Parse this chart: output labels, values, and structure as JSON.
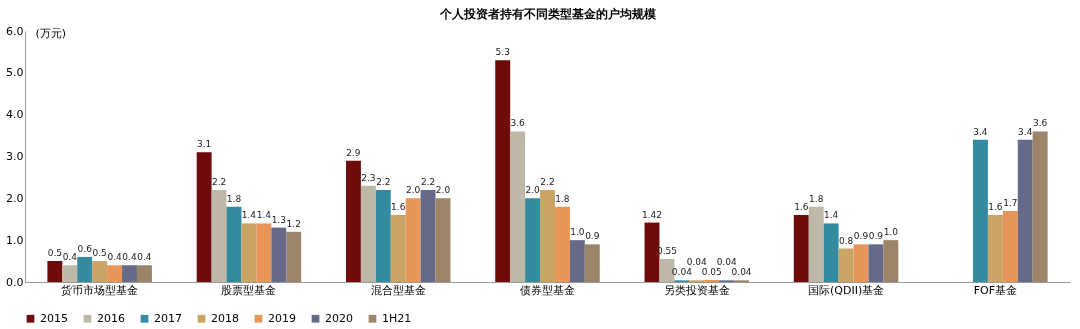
{
  "chart_data": {
    "type": "bar",
    "title": "个人投资者持有不同类型基金的户均规模",
    "ylabel": "(万元)",
    "categories": [
      "货币市场型基金",
      "股票型基金",
      "混合型基金",
      "债券型基金",
      "另类投资基金",
      "国际(QDII)基金",
      "FOF基金"
    ],
    "series": [
      {
        "name": "2015",
        "color": "#6e0b0b",
        "values": [
          0.5,
          3.1,
          2.9,
          5.3,
          1.42,
          1.6,
          null
        ],
        "value_labels": [
          "0.5",
          "3.1",
          "2.9",
          "5.3",
          "1.42",
          "1.6",
          null
        ]
      },
      {
        "name": "2016",
        "color": "#bdb8a8",
        "values": [
          0.4,
          2.2,
          2.3,
          3.6,
          0.55,
          1.8,
          null
        ],
        "value_labels": [
          "0.4",
          "2.2",
          "2.3",
          "3.6",
          "0.55",
          "1.8",
          null
        ]
      },
      {
        "name": "2017",
        "color": "#348a9e",
        "values": [
          0.6,
          1.8,
          2.2,
          2.0,
          0.04,
          1.4,
          3.4
        ],
        "value_labels": [
          "0.6",
          "1.8",
          "2.2",
          "2.0",
          "0.04",
          "1.4",
          "3.4"
        ]
      },
      {
        "name": "2018",
        "color": "#c9a465",
        "values": [
          0.5,
          1.4,
          1.6,
          2.2,
          0.04,
          0.8,
          1.6
        ],
        "value_labels": [
          "0.5",
          "1.4",
          "1.6",
          "2.2",
          "0.04",
          "0.8",
          "1.6"
        ]
      },
      {
        "name": "2019",
        "color": "#e8955a",
        "values": [
          0.4,
          1.4,
          2.0,
          1.8,
          0.05,
          0.9,
          1.7
        ],
        "value_labels": [
          "0.4",
          "1.4",
          "2.0",
          "1.8",
          "0.05",
          "0.9",
          "1.7"
        ]
      },
      {
        "name": "2020",
        "color": "#646a88",
        "values": [
          0.4,
          1.3,
          2.2,
          1.0,
          0.04,
          0.9,
          3.4
        ],
        "value_labels": [
          "0.4",
          "1.3",
          "2.2",
          "1.0",
          "0.04",
          "0.9",
          "3.4"
        ]
      },
      {
        "name": "1H21",
        "color": "#9c8468",
        "values": [
          0.4,
          1.2,
          2.0,
          0.9,
          0.04,
          1.0,
          3.6
        ],
        "value_labels": [
          "0.4",
          "1.2",
          "2.0",
          "0.9",
          "0.04",
          "1.0",
          "3.6"
        ]
      }
    ],
    "ylim": [
      0,
      6
    ],
    "yticks": [
      {
        "value": 0,
        "label": "0.0"
      },
      {
        "value": 1,
        "label": "1.0"
      },
      {
        "value": 2,
        "label": "2.0"
      },
      {
        "value": 3,
        "label": "3.0"
      },
      {
        "value": 4,
        "label": "4.0"
      },
      {
        "value": 5,
        "label": "5.0"
      },
      {
        "value": 6,
        "label": "6.0"
      }
    ],
    "grid": false,
    "legend": "bottom"
  }
}
